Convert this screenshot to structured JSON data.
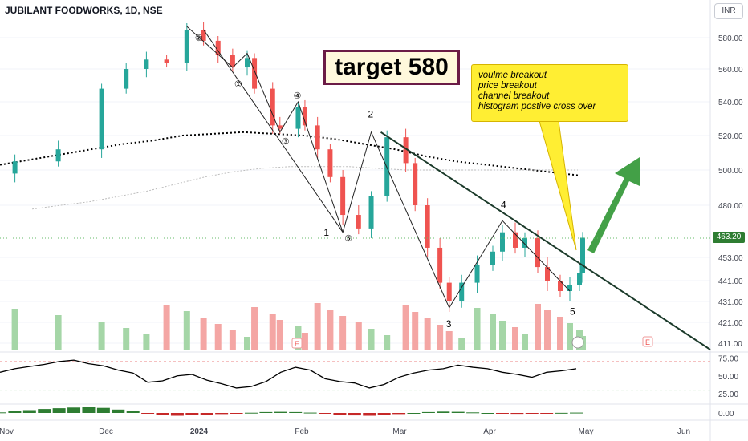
{
  "header": {
    "title": "JUBILANT FOODWORKS, 1D, NSE",
    "currency": "INR"
  },
  "annotations": {
    "target": "target 580",
    "callout": [
      "voulme breakout",
      "price breakout",
      "channel breakout",
      "histogram postive cross over"
    ],
    "wave_labels": {
      "w1": "1",
      "w2": "2",
      "w3": "3",
      "w4": "4",
      "w5": "5"
    },
    "sub_wave_labels": [
      "①",
      "②",
      "③",
      "④",
      "⑤"
    ],
    "earnings_marker": "E"
  },
  "current_price_label": "463.20",
  "colors": {
    "up": "#26a69a",
    "down": "#ef5350",
    "price_tag": "#2e7d32",
    "trend_arrow": "#43a047",
    "callout_bg": "#ffee33"
  },
  "chart_data": {
    "type": "candlestick",
    "title": "JUBILANT FOODWORKS, 1D, NSE",
    "price_axis": {
      "ticks": [
        580.0,
        560.0,
        540.0,
        520.0,
        500.0,
        480.0,
        453.0,
        441.0,
        431.0,
        421.0,
        411.0
      ],
      "tick_labels": [
        "580.00",
        "560.00",
        "540.00",
        "520.00",
        "500.00",
        "480.00",
        "453.00",
        "441.00",
        "431.00",
        "421.00",
        "411.00"
      ],
      "last_price": 463.2
    },
    "time_axis": {
      "labels": [
        "Nov",
        "Dec",
        "2024",
        "Feb",
        "Mar",
        "Apr",
        "May",
        "Jun"
      ]
    },
    "price_series": [
      {
        "date": "Nov-01",
        "close": 498
      },
      {
        "date": "Nov-10",
        "close": 505
      },
      {
        "date": "Nov-20",
        "close": 512
      },
      {
        "date": "Nov-30",
        "close": 548
      },
      {
        "date": "Dec-08",
        "close": 560
      },
      {
        "date": "Dec-15",
        "close": 566
      },
      {
        "date": "Dec-22",
        "close": 564
      },
      {
        "date": "Dec-29",
        "close": 585
      },
      {
        "date": "Jan-04",
        "close": 578
      },
      {
        "date": "Jan-08",
        "close": 569
      },
      {
        "date": "Jan-12",
        "close": 561
      },
      {
        "date": "Jan-16",
        "close": 567
      },
      {
        "date": "Jan-18",
        "close": 548
      },
      {
        "date": "Jan-23",
        "close": 526
      },
      {
        "date": "Jan-25",
        "close": 524
      },
      {
        "date": "Jan-30",
        "close": 537
      },
      {
        "date": "Feb-02",
        "close": 526
      },
      {
        "date": "Feb-06",
        "close": 512
      },
      {
        "date": "Feb-10",
        "close": 496
      },
      {
        "date": "Feb-14",
        "close": 475
      },
      {
        "date": "Feb-19",
        "close": 468
      },
      {
        "date": "Feb-23",
        "close": 485
      },
      {
        "date": "Feb-28",
        "close": 519
      },
      {
        "date": "Mar-04",
        "close": 504
      },
      {
        "date": "Mar-07",
        "close": 480
      },
      {
        "date": "Mar-11",
        "close": 458
      },
      {
        "date": "Mar-15",
        "close": 440
      },
      {
        "date": "Mar-18",
        "close": 431
      },
      {
        "date": "Mar-22",
        "close": 440
      },
      {
        "date": "Mar-27",
        "close": 449
      },
      {
        "date": "Apr-02",
        "close": 456
      },
      {
        "date": "Apr-05",
        "close": 466
      },
      {
        "date": "Apr-09",
        "close": 458
      },
      {
        "date": "Apr-12",
        "close": 463
      },
      {
        "date": "Apr-16",
        "close": 448
      },
      {
        "date": "Apr-19",
        "close": 441
      },
      {
        "date": "Apr-23",
        "close": 436
      },
      {
        "date": "Apr-26",
        "close": 439
      },
      {
        "date": "Apr-29",
        "close": 445
      },
      {
        "date": "Apr-30",
        "close": 463.2
      }
    ],
    "moving_averages": [
      {
        "style": "dotted-bold",
        "values": [
          503,
          506,
          509,
          512,
          515,
          517,
          520,
          521,
          522,
          521,
          520,
          518,
          515,
          512,
          508,
          505,
          503,
          501,
          499,
          497
        ]
      },
      {
        "style": "dotted-light",
        "values": [
          478,
          480,
          482,
          485,
          488,
          492,
          496,
          499,
          501,
          502,
          502,
          502,
          501,
          500,
          500,
          500,
          500,
          500,
          500,
          500
        ]
      }
    ],
    "volume": {
      "note": "histogram bars, colored by candle direction"
    },
    "rsi": {
      "ticks": [
        75.0,
        50.0,
        25.0
      ],
      "tick_labels": [
        "75.00",
        "50.00",
        "25.00"
      ],
      "upper_band": 70,
      "lower_band": 30,
      "values": [
        55,
        60,
        63,
        66,
        70,
        72,
        67,
        64,
        58,
        54,
        41,
        43,
        50,
        52,
        44,
        39,
        33,
        35,
        42,
        55,
        62,
        58,
        46,
        42,
        40,
        33,
        38,
        48,
        54,
        58,
        60,
        65,
        62,
        60,
        55,
        52,
        48,
        55,
        57,
        60
      ]
    },
    "macd_histogram": {
      "tick_labels": [
        "0.00"
      ],
      "values": [
        0.5,
        1.5,
        2.5,
        3.5,
        4.2,
        4.8,
        5.0,
        4.5,
        3.0,
        1.5,
        -0.5,
        -1.8,
        -2.5,
        -2.0,
        -1.5,
        -1.0,
        -0.5,
        0.2,
        0.8,
        1.0,
        0.8,
        0.3,
        -0.5,
        -1.5,
        -2.2,
        -2.5,
        -2.0,
        -1.0,
        0.0,
        0.8,
        1.2,
        1.0,
        0.5,
        0.0,
        -0.5,
        -0.8,
        -0.6,
        -0.2,
        0.1,
        0.3
      ]
    }
  }
}
